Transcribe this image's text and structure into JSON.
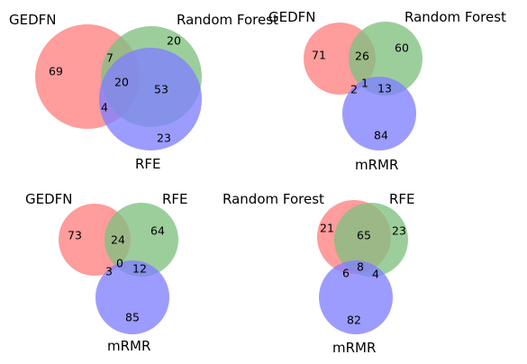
{
  "colors": {
    "set_a": "#ff8080",
    "set_b": "#80c080",
    "set_c": "#8080ff",
    "circle_opacity": 0.78
  },
  "diagrams": [
    {
      "sets": [
        "GEDFN",
        "Random Forest",
        "RFE"
      ],
      "regions": {
        "a_only": "69",
        "b_only": "20",
        "c_only": "23",
        "ab": "7",
        "ac": "4",
        "bc": "53",
        "abc": "20"
      }
    },
    {
      "sets": [
        "GEDFN",
        "Random Forest",
        "mRMR"
      ],
      "regions": {
        "a_only": "71",
        "b_only": "60",
        "c_only": "84",
        "ab": "26",
        "ac": "2",
        "bc": "13",
        "abc": "1"
      }
    },
    {
      "sets": [
        "GEDFN",
        "RFE",
        "mRMR"
      ],
      "regions": {
        "a_only": "73",
        "b_only": "64",
        "c_only": "85",
        "ab": "24",
        "ac": "3",
        "bc": "12",
        "abc": "0"
      }
    },
    {
      "sets": [
        "Random Forest",
        "RFE",
        "mRMR"
      ],
      "regions": {
        "a_only": "21",
        "b_only": "23",
        "c_only": "82",
        "ab": "65",
        "ac": "6",
        "bc": "4",
        "abc": "8"
      }
    }
  ]
}
